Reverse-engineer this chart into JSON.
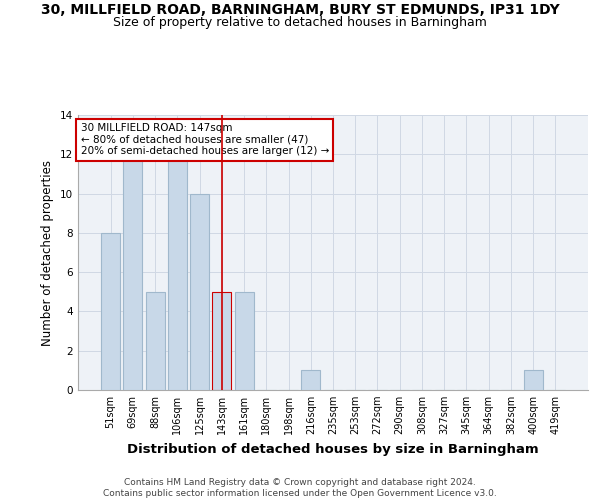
{
  "title_line1": "30, MILLFIELD ROAD, BARNINGHAM, BURY ST EDMUNDS, IP31 1DY",
  "title_line2": "Size of property relative to detached houses in Barningham",
  "xlabel": "Distribution of detached houses by size in Barningham",
  "ylabel": "Number of detached properties",
  "categories": [
    "51sqm",
    "69sqm",
    "88sqm",
    "106sqm",
    "125sqm",
    "143sqm",
    "161sqm",
    "180sqm",
    "198sqm",
    "216sqm",
    "235sqm",
    "253sqm",
    "272sqm",
    "290sqm",
    "308sqm",
    "327sqm",
    "345sqm",
    "364sqm",
    "382sqm",
    "400sqm",
    "419sqm"
  ],
  "values": [
    8,
    12,
    5,
    12,
    10,
    5,
    5,
    0,
    0,
    1,
    0,
    0,
    0,
    0,
    0,
    0,
    0,
    0,
    0,
    1,
    0
  ],
  "bar_color": "#c8d8e8",
  "bar_edge_color": "#a0b8cc",
  "highlight_index": 5,
  "highlight_color": "#c8d8e8",
  "highlight_edge_color": "#cc0000",
  "vline_x": 5,
  "vline_color": "#cc0000",
  "annotation_text": "30 MILLFIELD ROAD: 147sqm\n← 80% of detached houses are smaller (47)\n20% of semi-detached houses are larger (12) →",
  "annotation_box_color": "#ffffff",
  "annotation_box_edge": "#cc0000",
  "ylim": [
    0,
    14
  ],
  "yticks": [
    0,
    2,
    4,
    6,
    8,
    10,
    12,
    14
  ],
  "footer_text": "Contains HM Land Registry data © Crown copyright and database right 2024.\nContains public sector information licensed under the Open Government Licence v3.0.",
  "bg_color": "#eef2f7",
  "grid_color": "#d0d8e4",
  "title_fontsize": 10,
  "subtitle_fontsize": 9,
  "tick_fontsize": 7,
  "ylabel_fontsize": 8.5,
  "xlabel_fontsize": 9.5
}
